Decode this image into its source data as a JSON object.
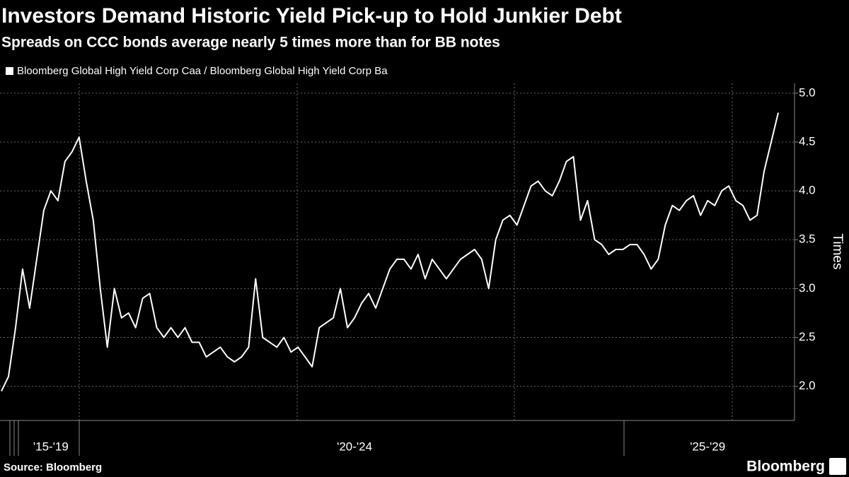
{
  "chart_data": {
    "type": "line",
    "title": "Investors Demand Historic Yield Pick-up to Hold Junkier Debt",
    "subtitle": "Spreads on CCC bonds average nearly 5 times more than for BB notes",
    "y_label": "Times",
    "source": "Source: Bloomberg",
    "brand": "Bloomberg",
    "categories": [
      null,
      null,
      null,
      null,
      null,
      null,
      null,
      "'15-'19",
      null,
      null,
      null,
      null,
      null,
      null,
      null,
      null,
      null,
      null,
      null,
      null,
      null,
      null,
      null,
      null,
      null,
      null,
      null,
      null,
      null,
      null,
      null,
      null,
      null,
      null,
      null,
      null,
      null,
      null,
      null,
      null,
      null,
      null,
      null,
      null,
      null,
      null,
      null,
      null,
      null,
      null,
      "'20-'24",
      null,
      null,
      null,
      null,
      null,
      null,
      null,
      null,
      null,
      null,
      null,
      null,
      null,
      null,
      null,
      null,
      null,
      null,
      null,
      null,
      null,
      null,
      null,
      null,
      null,
      null,
      null,
      null,
      null,
      null,
      null,
      null,
      null,
      null,
      null,
      null,
      null,
      null,
      null,
      null,
      null,
      null,
      null,
      null,
      null,
      null,
      null,
      null,
      null,
      "'25-'29",
      null,
      null,
      null,
      null,
      null,
      null,
      null,
      null,
      null,
      null
    ],
    "series": [
      {
        "name": "Bloomberg Global High Yield Corp Caa / Bloomberg Global High Yield Corp Ba",
        "color": "#ffffff",
        "values": [
          1.95,
          2.1,
          2.6,
          3.2,
          2.8,
          3.3,
          3.8,
          4.0,
          3.9,
          4.3,
          4.4,
          4.55,
          4.1,
          3.7,
          3.0,
          2.4,
          3.0,
          2.7,
          2.75,
          2.6,
          2.9,
          2.95,
          2.6,
          2.5,
          2.6,
          2.5,
          2.6,
          2.45,
          2.45,
          2.3,
          2.35,
          2.4,
          2.3,
          2.25,
          2.3,
          2.4,
          3.1,
          2.5,
          2.45,
          2.4,
          2.5,
          2.35,
          2.4,
          2.3,
          2.2,
          2.6,
          2.65,
          2.7,
          3.0,
          2.6,
          2.7,
          2.85,
          2.95,
          2.8,
          3.0,
          3.2,
          3.3,
          3.3,
          3.2,
          3.35,
          3.1,
          3.3,
          3.2,
          3.1,
          3.2,
          3.3,
          3.35,
          3.4,
          3.3,
          3.0,
          3.5,
          3.7,
          3.75,
          3.65,
          3.85,
          4.05,
          4.1,
          4.0,
          3.95,
          4.1,
          4.3,
          4.35,
          3.7,
          3.9,
          3.5,
          3.45,
          3.35,
          3.4,
          3.4,
          3.45,
          3.45,
          3.35,
          3.2,
          3.3,
          3.65,
          3.85,
          3.8,
          3.9,
          3.95,
          3.75,
          3.9,
          3.85,
          4.0,
          4.05,
          3.9,
          3.85,
          3.7,
          3.75,
          4.2,
          4.5,
          4.8
        ]
      }
    ],
    "ylim": [
      1.65,
      5.1
    ],
    "yticks": [
      {
        "value": 2,
        "label": "2.0"
      },
      2.5,
      {
        "value": 3,
        "label": "3.0"
      },
      3.5,
      {
        "value": 4,
        "label": "4.0"
      },
      4.5,
      {
        "value": 5,
        "label": "5.0"
      }
    ],
    "grid": true
  }
}
